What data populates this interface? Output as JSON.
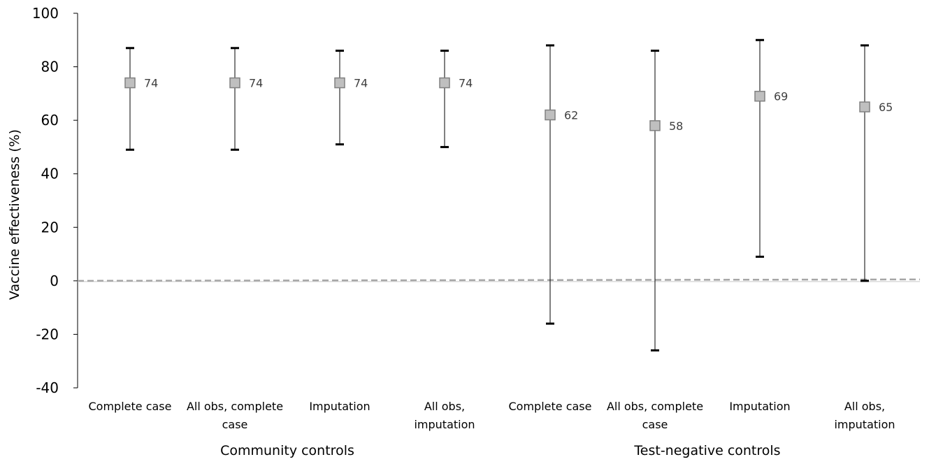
{
  "chart_data": {
    "type": "scatter",
    "subtype": "point-estimate-with-confidence-intervals",
    "ylabel": "Vaccine effectiveness (%)",
    "ylim": [
      -40,
      100
    ],
    "yticks": [
      -40,
      -20,
      0,
      20,
      40,
      60,
      80,
      100
    ],
    "reference_line": {
      "y": 0,
      "style": "dashed",
      "color": "#a6a6a6"
    },
    "marker_color": "#bfbfbf",
    "marker_border": "#808080",
    "groups": [
      {
        "label": "Community controls",
        "category_indices": [
          0,
          1,
          2,
          3
        ]
      },
      {
        "label": "Test-negative controls",
        "category_indices": [
          4,
          5,
          6,
          7
        ]
      }
    ],
    "categories": [
      [
        "Complete case"
      ],
      [
        "All obs, complete",
        "case"
      ],
      [
        "Imputation"
      ],
      [
        "All obs,",
        "imputation"
      ],
      [
        "Complete case"
      ],
      [
        "All obs, complete",
        "case"
      ],
      [
        "Imputation"
      ],
      [
        "All obs,",
        "imputation"
      ]
    ],
    "estimates": [
      74,
      74,
      74,
      74,
      62,
      58,
      69,
      65
    ],
    "lower": [
      49,
      49,
      51,
      50,
      -16,
      -26,
      9,
      0
    ],
    "upper": [
      87,
      87,
      86,
      86,
      88,
      86,
      90,
      88
    ],
    "data_labels": [
      "74",
      "74",
      "74",
      "74",
      "62",
      "58",
      "69",
      "65"
    ],
    "grid": false,
    "legend": "none"
  }
}
